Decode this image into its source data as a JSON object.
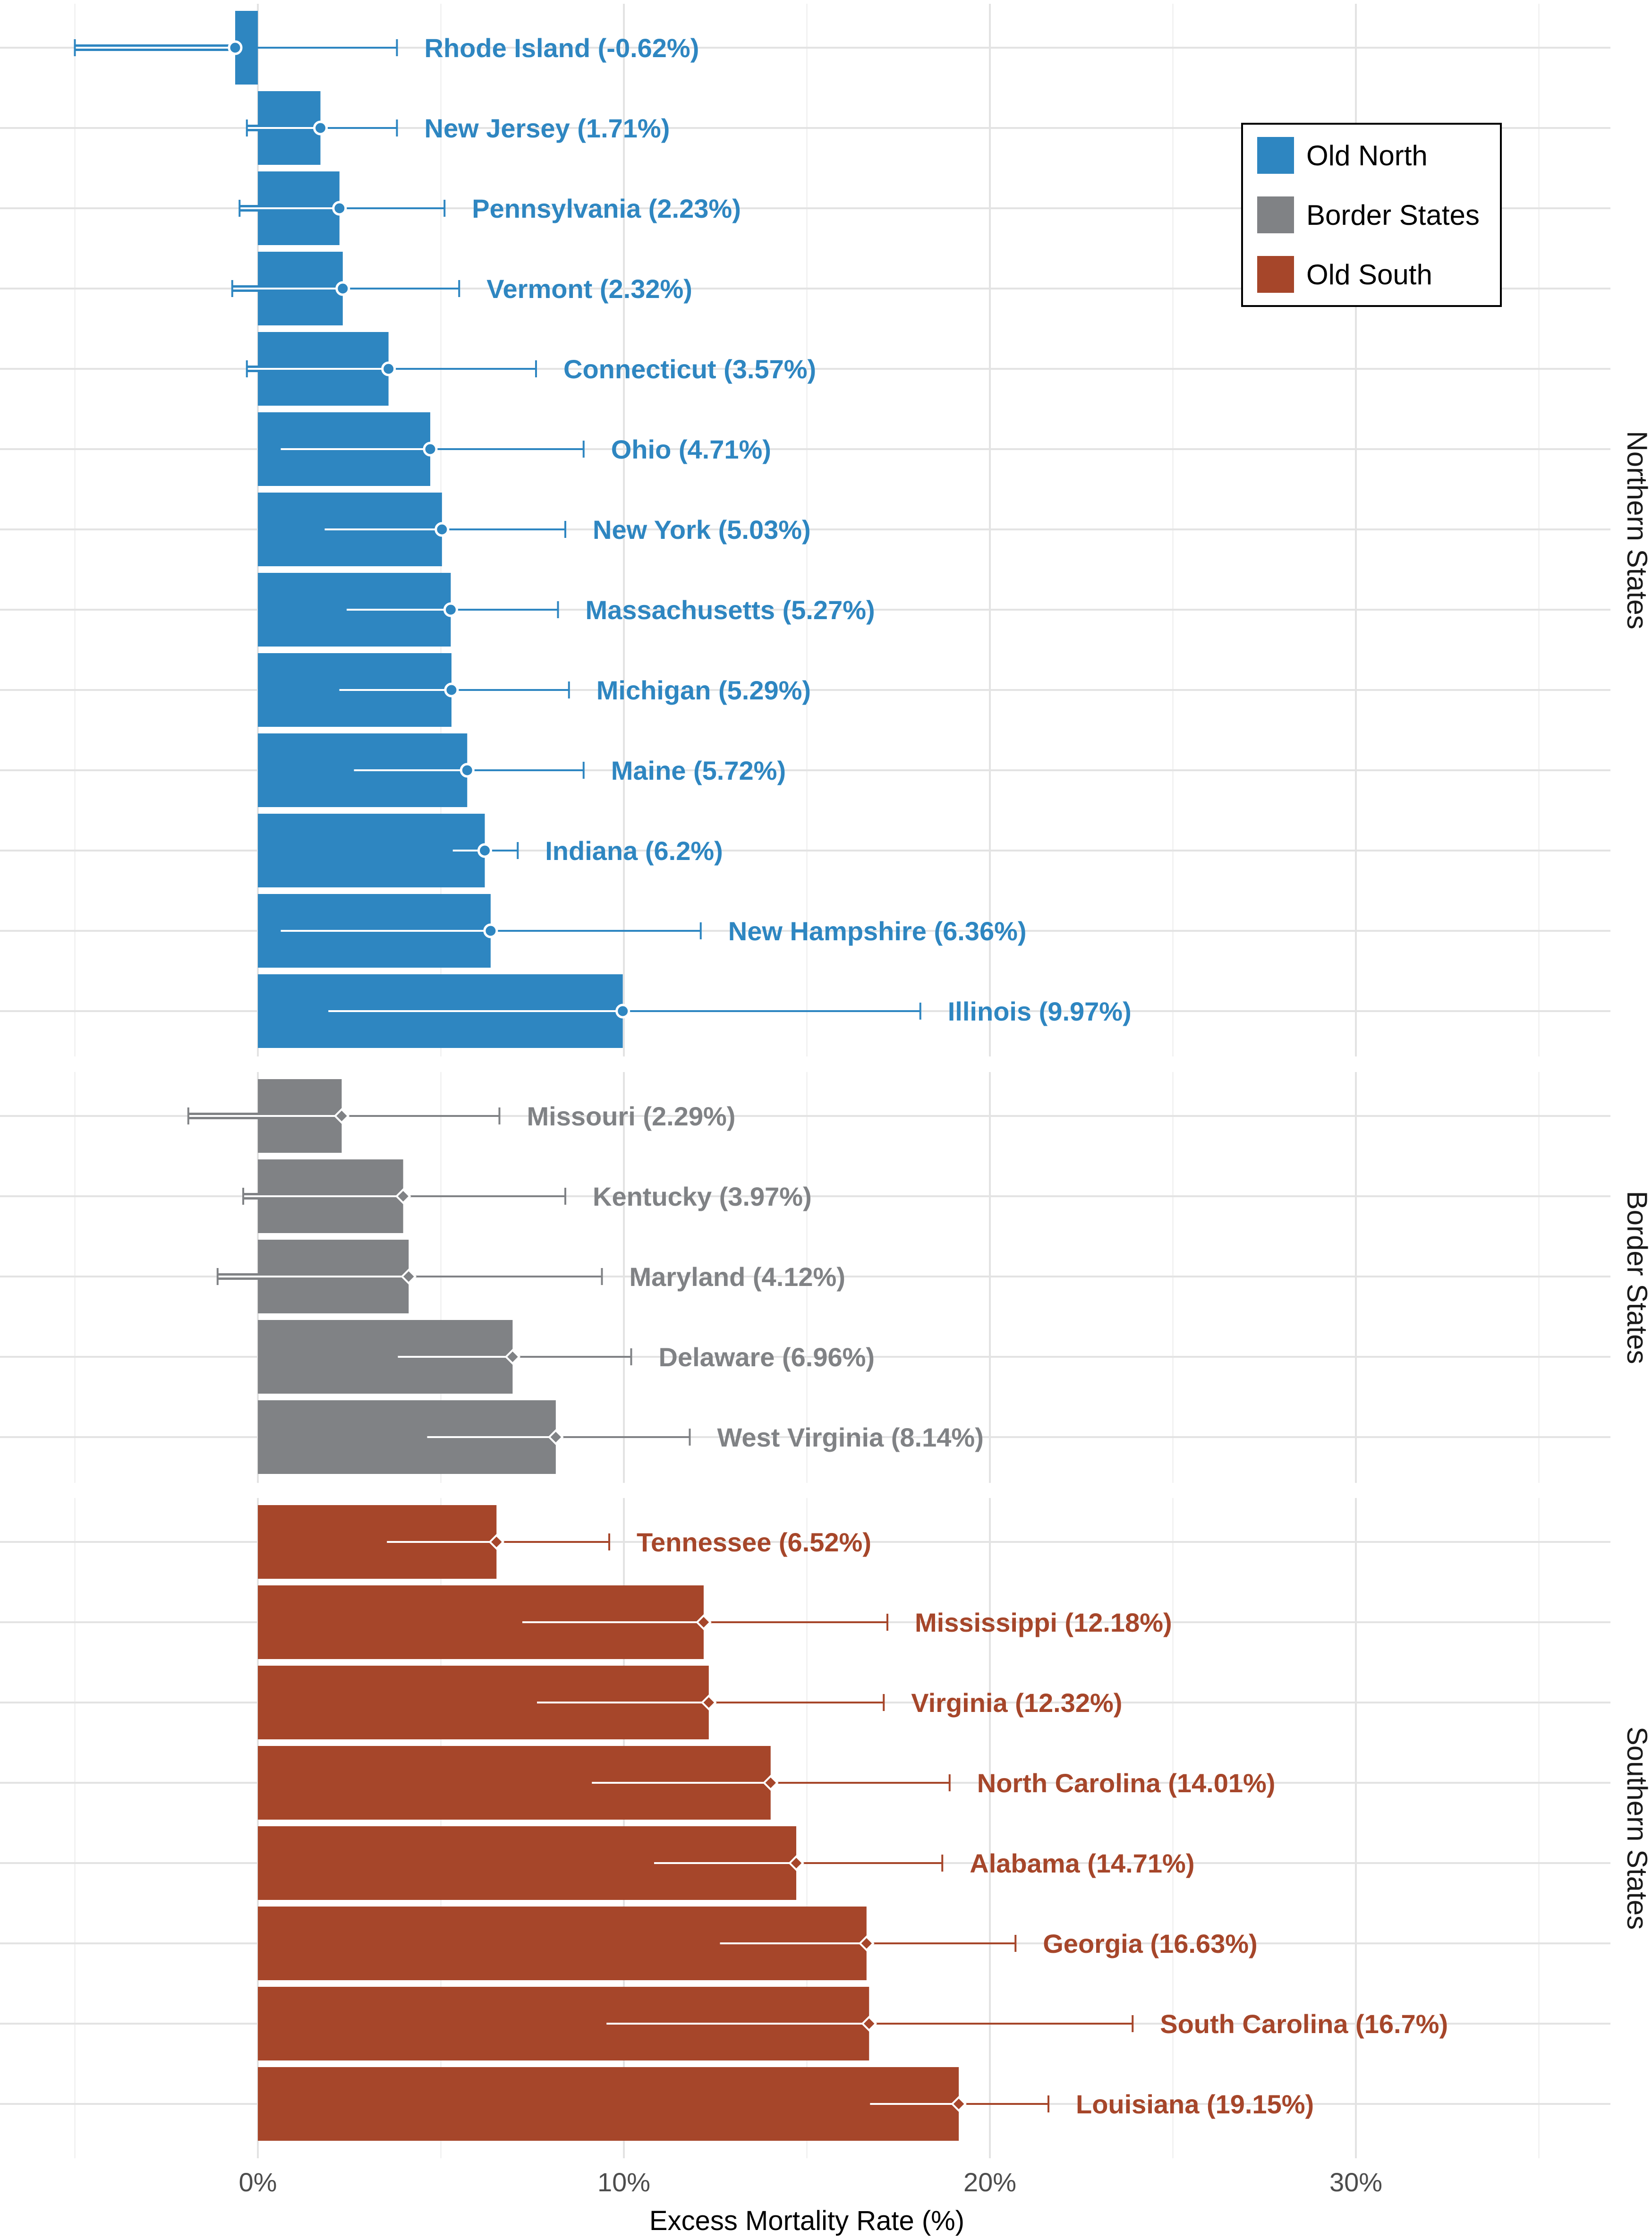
{
  "chart_data": {
    "type": "bar",
    "orientation": "horizontal",
    "xlabel": "Excess Mortality Rate (%)",
    "xlim": [
      -7,
      38
    ],
    "xticks": [
      0,
      10,
      20,
      30
    ],
    "xtick_labels": [
      "0%",
      "10%",
      "20%",
      "30%"
    ],
    "grid": true,
    "legend_position": "top-right",
    "legend": [
      {
        "key": "north",
        "label": "Old North",
        "color": "#2E86C1"
      },
      {
        "key": "border",
        "label": "Border States",
        "color": "#808285"
      },
      {
        "key": "south",
        "label": "Old South",
        "color": "#A6462A"
      }
    ],
    "panels": [
      {
        "name": "Northern States",
        "group": "north",
        "marker": "circle",
        "rows": [
          {
            "state": "Rhode Island",
            "label": "Rhode Island (-0.62%)",
            "value": -0.62,
            "ci_low": -5.0,
            "ci_high": 3.8
          },
          {
            "state": "New Jersey",
            "label": "New Jersey (1.71%)",
            "value": 1.71,
            "ci_low": -0.3,
            "ci_high": 3.8
          },
          {
            "state": "Pennsylvania",
            "label": "Pennsylvania (2.23%)",
            "value": 2.23,
            "ci_low": -0.5,
            "ci_high": 5.1
          },
          {
            "state": "Vermont",
            "label": "Vermont (2.32%)",
            "value": 2.32,
            "ci_low": -0.7,
            "ci_high": 5.5
          },
          {
            "state": "Connecticut",
            "label": "Connecticut (3.57%)",
            "value": 3.57,
            "ci_low": -0.3,
            "ci_high": 7.6
          },
          {
            "state": "Ohio",
            "label": "Ohio (4.71%)",
            "value": 4.71,
            "ci_low": 0.6,
            "ci_high": 8.9
          },
          {
            "state": "New York",
            "label": "New York (5.03%)",
            "value": 5.03,
            "ci_low": 1.8,
            "ci_high": 8.4
          },
          {
            "state": "Massachusetts",
            "label": "Massachusetts (5.27%)",
            "value": 5.27,
            "ci_low": 2.4,
            "ci_high": 8.2
          },
          {
            "state": "Michigan",
            "label": "Michigan (5.29%)",
            "value": 5.29,
            "ci_low": 2.2,
            "ci_high": 8.5
          },
          {
            "state": "Maine",
            "label": "Maine (5.72%)",
            "value": 5.72,
            "ci_low": 2.6,
            "ci_high": 8.9
          },
          {
            "state": "Indiana",
            "label": "Indiana (6.2%)",
            "value": 6.2,
            "ci_low": 5.3,
            "ci_high": 7.1
          },
          {
            "state": "New Hampshire",
            "label": "New Hampshire (6.36%)",
            "value": 6.36,
            "ci_low": 0.6,
            "ci_high": 12.1
          },
          {
            "state": "Illinois",
            "label": "Illinois (9.97%)",
            "value": 9.97,
            "ci_low": 1.9,
            "ci_high": 18.1
          }
        ]
      },
      {
        "name": "Border States",
        "group": "border",
        "marker": "diamond",
        "rows": [
          {
            "state": "Missouri",
            "label": "Missouri (2.29%)",
            "value": 2.29,
            "ci_low": -1.9,
            "ci_high": 6.6
          },
          {
            "state": "Kentucky",
            "label": "Kentucky (3.97%)",
            "value": 3.97,
            "ci_low": -0.4,
            "ci_high": 8.4
          },
          {
            "state": "Maryland",
            "label": "Maryland (4.12%)",
            "value": 4.12,
            "ci_low": -1.1,
            "ci_high": 9.4
          },
          {
            "state": "Delaware",
            "label": "Delaware (6.96%)",
            "value": 6.96,
            "ci_low": 3.8,
            "ci_high": 10.2
          },
          {
            "state": "West Virginia",
            "label": "West Virginia (8.14%)",
            "value": 8.14,
            "ci_low": 4.6,
            "ci_high": 11.8
          }
        ]
      },
      {
        "name": "Southern States",
        "group": "south",
        "marker": "diamond",
        "rows": [
          {
            "state": "Tennessee",
            "label": "Tennessee (6.52%)",
            "value": 6.52,
            "ci_low": 3.5,
            "ci_high": 9.6
          },
          {
            "state": "Mississippi",
            "label": "Mississippi (12.18%)",
            "value": 12.18,
            "ci_low": 7.2,
            "ci_high": 17.2
          },
          {
            "state": "Virginia",
            "label": "Virginia (12.32%)",
            "value": 12.32,
            "ci_low": 7.6,
            "ci_high": 17.1
          },
          {
            "state": "North Carolina",
            "label": "North Carolina (14.01%)",
            "value": 14.01,
            "ci_low": 9.1,
            "ci_high": 18.9
          },
          {
            "state": "Alabama",
            "label": "Alabama (14.71%)",
            "value": 14.71,
            "ci_low": 10.8,
            "ci_high": 18.7
          },
          {
            "state": "Georgia",
            "label": "Georgia (16.63%)",
            "value": 16.63,
            "ci_low": 12.6,
            "ci_high": 20.7
          },
          {
            "state": "South Carolina",
            "label": "South Carolina (16.7%)",
            "value": 16.7,
            "ci_low": 9.5,
            "ci_high": 23.9
          },
          {
            "state": "Louisiana",
            "label": "Louisiana (19.15%)",
            "value": 19.15,
            "ci_low": 16.7,
            "ci_high": 21.6
          }
        ]
      }
    ]
  }
}
